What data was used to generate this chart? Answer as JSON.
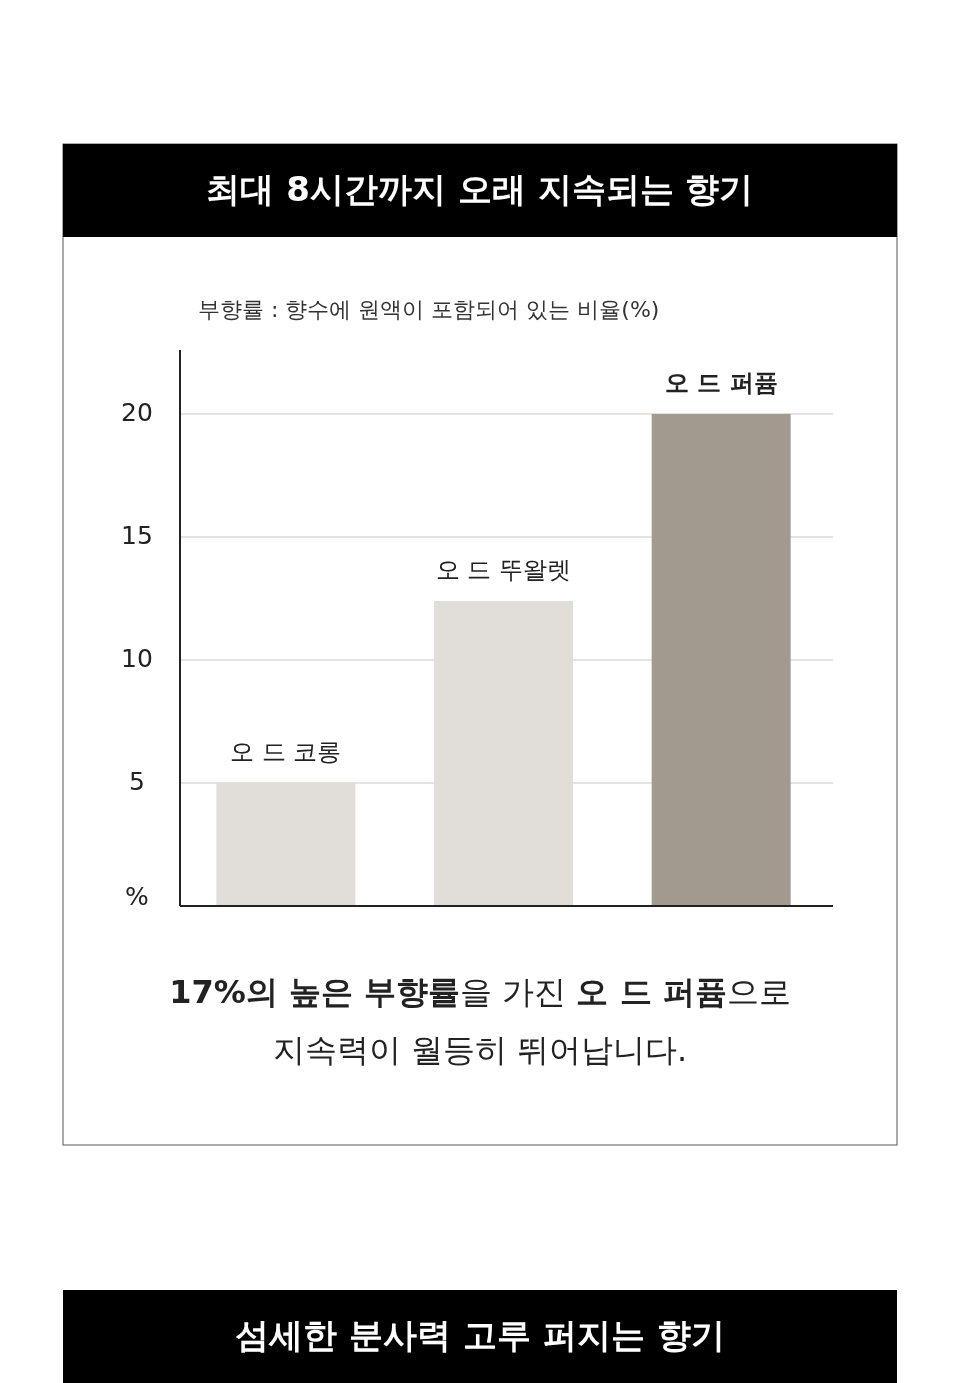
{
  "chart_data": {
    "type": "bar",
    "title": "최대 8시간까지 오래 지속되는 향기",
    "subtitle": "부향률 : 향수에 원액이 포함되어 있는 비율(%)",
    "categories": [
      "오 드 코롱",
      "오 드 뚜왈렛",
      "오 드 퍼퓸"
    ],
    "values": [
      5,
      12.4,
      20
    ],
    "colors": [
      "#e1deda",
      "#e1deda",
      "#a39a8f"
    ],
    "ylim": [
      0,
      22.6
    ],
    "yticks": [
      {
        "value": 0,
        "label": "%"
      },
      5,
      10,
      15,
      20
    ],
    "grid": "y",
    "annotations": [
      "**17%의 높은 부향률**을 가진 **오 드 퍼퓸**으로 지속력이 월등히 뛰어납니다.",
      "섬세한 분사력 고루 퍼지는 향기"
    ]
  }
}
